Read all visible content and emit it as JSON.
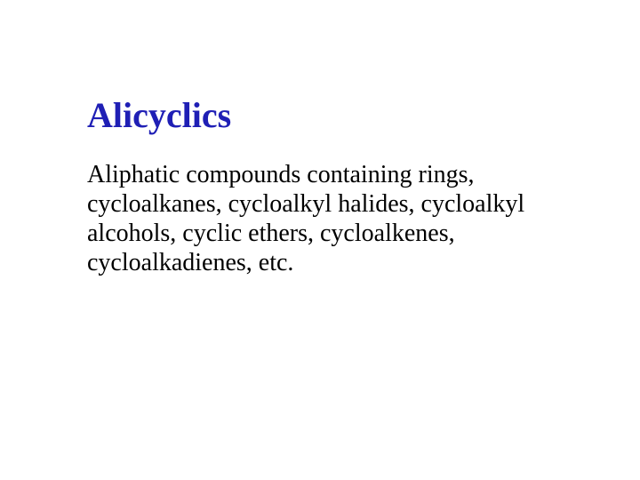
{
  "slide": {
    "title": "Alicyclics",
    "body": "Aliphatic compounds containing rings, cycloalkanes, cycloalkyl halides, cycloalkyl alcohols, cyclic ethers, cycloalkenes, cycloalkadienes, etc."
  },
  "style": {
    "background_color": "#ffffff",
    "title_color": "#1f1fb5",
    "body_color": "#000000",
    "title_fontsize": 40,
    "body_fontsize": 28,
    "font_family": "Times New Roman"
  }
}
